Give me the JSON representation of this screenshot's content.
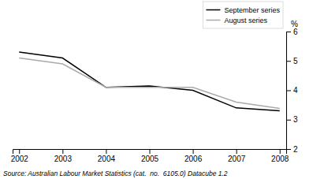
{
  "chart_data": {
    "type": "line",
    "x": [
      2002,
      2003,
      2004,
      2005,
      2006,
      2007,
      2008
    ],
    "series": [
      {
        "name": "September series",
        "color": "#000000",
        "values": [
          5.3,
          5.1,
          4.1,
          4.15,
          4.0,
          3.4,
          3.3
        ]
      },
      {
        "name": "August series",
        "color": "#aaaaaa",
        "values": [
          5.1,
          4.9,
          4.1,
          4.1,
          4.1,
          3.6,
          3.38
        ]
      }
    ],
    "xlim": [
      2001.85,
      2008.15
    ],
    "xticks": [
      2002,
      2003,
      2004,
      2005,
      2006,
      2007,
      2008
    ],
    "ylim": [
      2,
      6
    ],
    "yticks": [
      2,
      3,
      4,
      5,
      6
    ],
    "y_label": "%",
    "annotations": [
      "Source: Australian Labour Market Statistics (cat.  no.  6105.0) Datacube 1.2"
    ],
    "legend": "upper right",
    "grid": false
  }
}
